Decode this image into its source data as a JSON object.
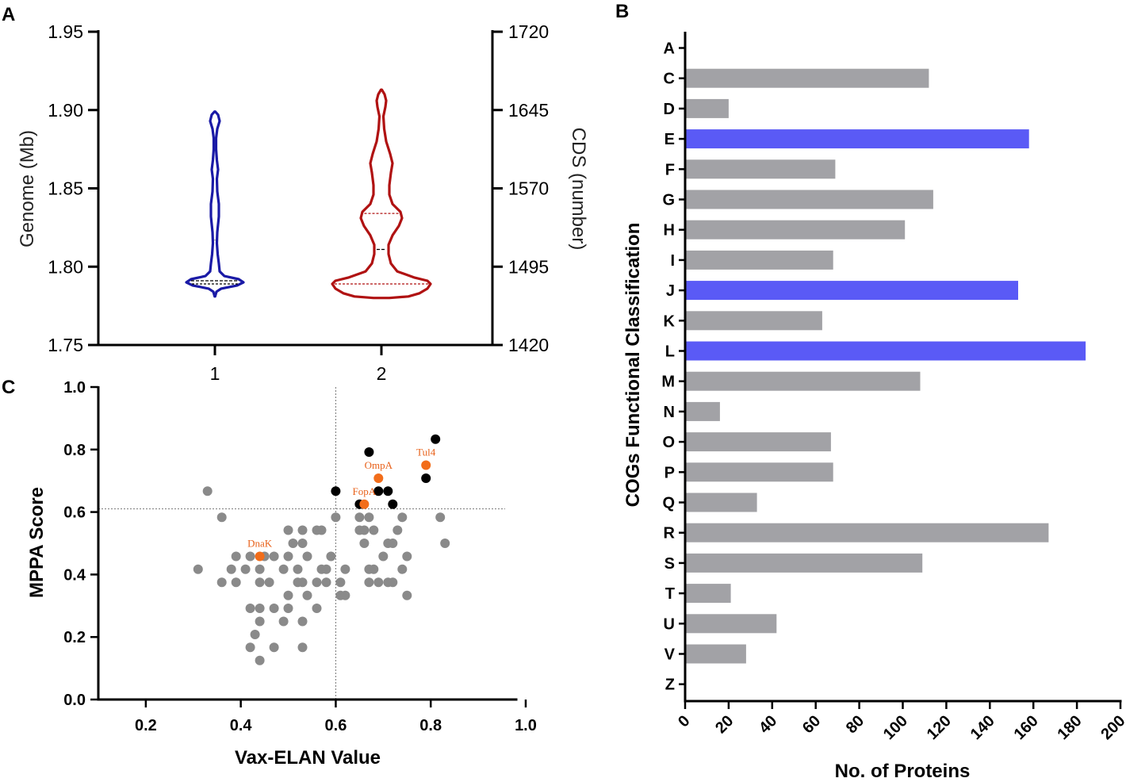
{
  "chart_data": [
    {
      "panel": "A",
      "type": "violin",
      "categories": [
        "1",
        "2"
      ],
      "ylabel_left": "Genome  (Mb)",
      "ylabel_right": "CDS  (number)",
      "yticks_left": [
        "1.75",
        "1.80",
        "1.85",
        "1.90",
        "1.95"
      ],
      "yticks_right": [
        "1420",
        "1495",
        "1570",
        "1645",
        "1720"
      ],
      "ylim_left": [
        1.75,
        1.95
      ],
      "ylim_right": [
        1420,
        1720
      ],
      "series": [
        {
          "name": "1",
          "color": "#1a1aa6",
          "quartile_color": "#000000",
          "median": 1.791,
          "quartiles": [
            1.789,
            1.817
          ],
          "profile": [
            [
              1.781,
              0.3
            ],
            [
              1.784,
              2
            ],
            [
              1.786,
              8
            ],
            [
              1.788,
              28
            ],
            [
              1.79,
              36
            ],
            [
              1.792,
              30
            ],
            [
              1.794,
              12
            ],
            [
              1.797,
              6
            ],
            [
              1.802,
              5
            ],
            [
              1.808,
              3.5
            ],
            [
              1.815,
              2.5
            ],
            [
              1.822,
              3
            ],
            [
              1.832,
              5
            ],
            [
              1.84,
              5
            ],
            [
              1.848,
              3
            ],
            [
              1.856,
              2.5
            ],
            [
              1.862,
              4
            ],
            [
              1.868,
              2.5
            ],
            [
              1.875,
              1.5
            ],
            [
              1.882,
              1.5
            ],
            [
              1.888,
              3
            ],
            [
              1.893,
              6
            ],
            [
              1.897,
              4
            ],
            [
              1.899,
              0.4
            ]
          ]
        },
        {
          "name": "2",
          "color": "#b01212",
          "quartile_color": "#b01212",
          "median_color": "#000000",
          "median": 1.811,
          "quartiles": [
            1.789,
            1.834
          ],
          "profile": [
            [
              1.78,
              10
            ],
            [
              1.781,
              34
            ],
            [
              1.783,
              48
            ],
            [
              1.786,
              58
            ],
            [
              1.789,
              62
            ],
            [
              1.791,
              58
            ],
            [
              1.793,
              42
            ],
            [
              1.797,
              20
            ],
            [
              1.802,
              12
            ],
            [
              1.808,
              9
            ],
            [
              1.814,
              9
            ],
            [
              1.82,
              14
            ],
            [
              1.826,
              22
            ],
            [
              1.831,
              26
            ],
            [
              1.835,
              24
            ],
            [
              1.84,
              14
            ],
            [
              1.846,
              10
            ],
            [
              1.852,
              10
            ],
            [
              1.86,
              12
            ],
            [
              1.866,
              14
            ],
            [
              1.872,
              11
            ],
            [
              1.88,
              6
            ],
            [
              1.888,
              3.5
            ],
            [
              1.896,
              2.5
            ],
            [
              1.902,
              5
            ],
            [
              1.906,
              6
            ],
            [
              1.91,
              4
            ],
            [
              1.913,
              0.5
            ]
          ]
        }
      ]
    },
    {
      "panel": "B",
      "type": "bar",
      "orientation": "horizontal",
      "xlabel": "No. of Proteins",
      "ylabel": "COGs Functional Classification",
      "xlim": [
        0,
        200
      ],
      "xticks": [
        "0",
        "20",
        "40",
        "60",
        "80",
        "100",
        "120",
        "140",
        "160",
        "180",
        "200"
      ],
      "categories": [
        "A",
        "C",
        "D",
        "E",
        "F",
        "G",
        "H",
        "I",
        "J",
        "K",
        "L",
        "M",
        "N",
        "O",
        "P",
        "Q",
        "R",
        "S",
        "T",
        "U",
        "V",
        "Z"
      ],
      "values": [
        0,
        112,
        20,
        158,
        69,
        114,
        101,
        68,
        153,
        63,
        184,
        108,
        16,
        67,
        68,
        33,
        167,
        109,
        21,
        42,
        28,
        0
      ],
      "highlight": [
        "E",
        "J",
        "L"
      ],
      "colors": {
        "default": "#a2a2a6",
        "highlight": "#5a5af6"
      }
    },
    {
      "panel": "C",
      "type": "scatter",
      "xlabel": "Vax-ELAN Value",
      "ylabel": "MPPA Score",
      "xlim": [
        0.1,
        0.98
      ],
      "ylim": [
        0.0,
        1.0
      ],
      "xticks": [
        "0.2",
        "0.4",
        "0.6",
        "0.8",
        "1.0"
      ],
      "yticks": [
        "0.0",
        "0.2",
        "0.4",
        "0.6",
        "0.8",
        "1.0"
      ],
      "threshold_x": 0.6,
      "threshold_y": 0.61,
      "colors": {
        "gray": "#8a8a8a",
        "black": "#000000",
        "orange": "#f26d1a",
        "label": "#e8611a"
      },
      "gray_points": [
        [
          0.31,
          0.417
        ],
        [
          0.33,
          0.667
        ],
        [
          0.36,
          0.583
        ],
        [
          0.36,
          0.375
        ],
        [
          0.38,
          0.417
        ],
        [
          0.39,
          0.458
        ],
        [
          0.39,
          0.375
        ],
        [
          0.41,
          0.417
        ],
        [
          0.42,
          0.458
        ],
        [
          0.42,
          0.292
        ],
        [
          0.42,
          0.167
        ],
        [
          0.43,
          0.208
        ],
        [
          0.44,
          0.417
        ],
        [
          0.44,
          0.375
        ],
        [
          0.44,
          0.292
        ],
        [
          0.44,
          0.25
        ],
        [
          0.44,
          0.125
        ],
        [
          0.45,
          0.458
        ],
        [
          0.46,
          0.375
        ],
        [
          0.47,
          0.458
        ],
        [
          0.47,
          0.292
        ],
        [
          0.47,
          0.167
        ],
        [
          0.49,
          0.417
        ],
        [
          0.49,
          0.25
        ],
        [
          0.5,
          0.542
        ],
        [
          0.5,
          0.458
        ],
        [
          0.5,
          0.333
        ],
        [
          0.5,
          0.292
        ],
        [
          0.51,
          0.5
        ],
        [
          0.52,
          0.417
        ],
        [
          0.52,
          0.375
        ],
        [
          0.53,
          0.542
        ],
        [
          0.53,
          0.5
        ],
        [
          0.53,
          0.375
        ],
        [
          0.53,
          0.25
        ],
        [
          0.53,
          0.167
        ],
        [
          0.54,
          0.458
        ],
        [
          0.54,
          0.333
        ],
        [
          0.56,
          0.542
        ],
        [
          0.56,
          0.375
        ],
        [
          0.56,
          0.292
        ],
        [
          0.57,
          0.542
        ],
        [
          0.57,
          0.417
        ],
        [
          0.58,
          0.417
        ],
        [
          0.58,
          0.375
        ],
        [
          0.59,
          0.458
        ],
        [
          0.6,
          0.583
        ],
        [
          0.61,
          0.375
        ],
        [
          0.61,
          0.333
        ],
        [
          0.62,
          0.417
        ],
        [
          0.62,
          0.333
        ],
        [
          0.65,
          0.583
        ],
        [
          0.65,
          0.542
        ],
        [
          0.66,
          0.542
        ],
        [
          0.66,
          0.5
        ],
        [
          0.67,
          0.583
        ],
        [
          0.67,
          0.417
        ],
        [
          0.67,
          0.375
        ],
        [
          0.68,
          0.542
        ],
        [
          0.68,
          0.417
        ],
        [
          0.69,
          0.375
        ],
        [
          0.7,
          0.458
        ],
        [
          0.71,
          0.5
        ],
        [
          0.71,
          0.375
        ],
        [
          0.72,
          0.5
        ],
        [
          0.72,
          0.375
        ],
        [
          0.73,
          0.542
        ],
        [
          0.74,
          0.417
        ],
        [
          0.74,
          0.583
        ],
        [
          0.75,
          0.458
        ],
        [
          0.75,
          0.333
        ],
        [
          0.82,
          0.583
        ],
        [
          0.83,
          0.5
        ]
      ],
      "black_points": [
        [
          0.6,
          0.667
        ],
        [
          0.65,
          0.625
        ],
        [
          0.67,
          0.792
        ],
        [
          0.69,
          0.667
        ],
        [
          0.71,
          0.667
        ],
        [
          0.72,
          0.625
        ],
        [
          0.79,
          0.708
        ],
        [
          0.81,
          0.833
        ]
      ],
      "labeled_points": [
        {
          "label": "DnaK",
          "x": 0.44,
          "y": 0.458
        },
        {
          "label": "FopA",
          "x": 0.66,
          "y": 0.625
        },
        {
          "label": "OmpA",
          "x": 0.69,
          "y": 0.708
        },
        {
          "label": "Tul4",
          "x": 0.79,
          "y": 0.75
        }
      ]
    }
  ]
}
